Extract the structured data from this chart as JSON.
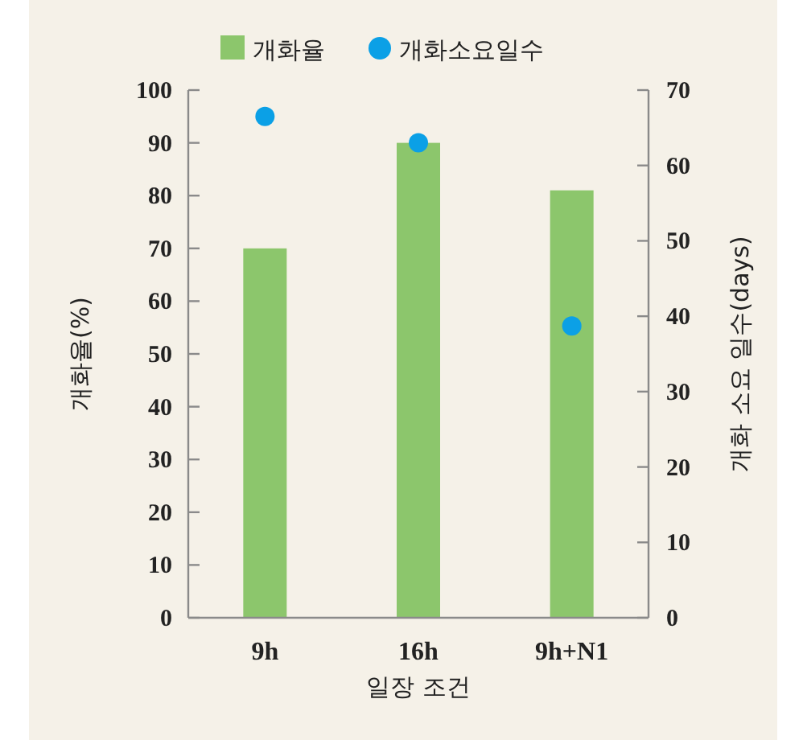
{
  "chart_data": {
    "type": "bar",
    "xlabel": "일장 조건",
    "ylabel": "개화율(%)",
    "y2label": "개화 소요 일수(days)",
    "categories": [
      "9h",
      "16h",
      "9h+N1"
    ],
    "series": [
      {
        "name": "개화율",
        "color": "#8cc66c",
        "values": [
          70,
          90,
          81
        ]
      },
      {
        "name": "개화소요일수",
        "type": "scatter",
        "axis": "y2",
        "color": "#0ba0e6",
        "values": [
          66.5,
          63,
          38.7
        ]
      }
    ],
    "ylim": [
      0,
      100
    ],
    "yticks": [
      0,
      10,
      20,
      30,
      40,
      50,
      60,
      70,
      80,
      90,
      100
    ],
    "y2lim": [
      0,
      70
    ],
    "y2ticks": [
      0,
      10,
      20,
      30,
      40,
      50,
      60,
      70
    ],
    "legend": "top",
    "marker": "circle"
  }
}
